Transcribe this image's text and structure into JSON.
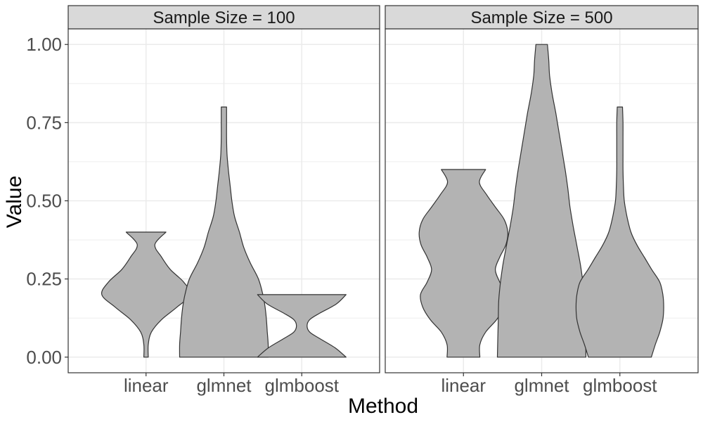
{
  "chart_data": {
    "type": "violin",
    "xlabel": "Method",
    "ylabel": "Value",
    "ylim": [
      -0.05,
      1.05
    ],
    "yticks": [
      0.0,
      0.25,
      0.5,
      0.75,
      1.0
    ],
    "ytick_labels": [
      "0.00",
      "0.25",
      "0.50",
      "0.75",
      "1.00"
    ],
    "categories": [
      "linear",
      "glmnet",
      "glmboost"
    ],
    "grid": true,
    "colors": {
      "fill": "#b3b3b3",
      "stroke": "#333333",
      "strip": "#d9d9d9",
      "grid": "#ebebeb",
      "panel_border": "#333333"
    },
    "panels": [
      {
        "strip": "Sample Size = 100",
        "violins": [
          {
            "category": "linear",
            "min": 0.0,
            "max": 0.4,
            "density": [
              [
                0.0,
                0.05
              ],
              [
                0.04,
                0.05
              ],
              [
                0.08,
                0.12
              ],
              [
                0.12,
                0.35
              ],
              [
                0.16,
                0.7
              ],
              [
                0.2,
                1.0
              ],
              [
                0.24,
                0.85
              ],
              [
                0.28,
                0.55
              ],
              [
                0.32,
                0.35
              ],
              [
                0.36,
                0.2
              ],
              [
                0.4,
                0.45
              ]
            ]
          },
          {
            "category": "glmnet",
            "min": 0.0,
            "max": 0.8,
            "density": [
              [
                0.0,
                1.0
              ],
              [
                0.04,
                1.0
              ],
              [
                0.08,
                0.98
              ],
              [
                0.12,
                0.96
              ],
              [
                0.16,
                0.93
              ],
              [
                0.2,
                0.88
              ],
              [
                0.25,
                0.78
              ],
              [
                0.3,
                0.6
              ],
              [
                0.35,
                0.45
              ],
              [
                0.4,
                0.35
              ],
              [
                0.45,
                0.24
              ],
              [
                0.5,
                0.18
              ],
              [
                0.55,
                0.14
              ],
              [
                0.6,
                0.1
              ],
              [
                0.65,
                0.07
              ],
              [
                0.7,
                0.06
              ],
              [
                0.75,
                0.06
              ],
              [
                0.8,
                0.06
              ]
            ]
          },
          {
            "category": "glmboost",
            "min": 0.0,
            "max": 0.2,
            "density": [
              [
                0.0,
                1.0
              ],
              [
                0.03,
                0.75
              ],
              [
                0.06,
                0.4
              ],
              [
                0.08,
                0.18
              ],
              [
                0.1,
                0.12
              ],
              [
                0.12,
                0.18
              ],
              [
                0.14,
                0.4
              ],
              [
                0.17,
                0.78
              ],
              [
                0.2,
                1.0
              ]
            ]
          }
        ]
      },
      {
        "strip": "Sample Size = 500",
        "violins": [
          {
            "category": "linear",
            "min": 0.0,
            "max": 0.6,
            "density": [
              [
                0.0,
                0.37
              ],
              [
                0.04,
                0.37
              ],
              [
                0.08,
                0.5
              ],
              [
                0.12,
                0.75
              ],
              [
                0.16,
                0.92
              ],
              [
                0.2,
                0.97
              ],
              [
                0.24,
                0.82
              ],
              [
                0.28,
                0.72
              ],
              [
                0.32,
                0.82
              ],
              [
                0.36,
                0.96
              ],
              [
                0.4,
                1.0
              ],
              [
                0.44,
                0.92
              ],
              [
                0.48,
                0.72
              ],
              [
                0.52,
                0.52
              ],
              [
                0.56,
                0.36
              ],
              [
                0.6,
                0.5
              ]
            ]
          },
          {
            "category": "glmnet",
            "min": 0.0,
            "max": 1.0,
            "density": [
              [
                0.0,
                1.0
              ],
              [
                0.06,
                0.99
              ],
              [
                0.12,
                0.98
              ],
              [
                0.18,
                0.97
              ],
              [
                0.24,
                0.93
              ],
              [
                0.3,
                0.87
              ],
              [
                0.36,
                0.79
              ],
              [
                0.42,
                0.71
              ],
              [
                0.48,
                0.64
              ],
              [
                0.54,
                0.59
              ],
              [
                0.6,
                0.53
              ],
              [
                0.66,
                0.46
              ],
              [
                0.72,
                0.39
              ],
              [
                0.78,
                0.32
              ],
              [
                0.84,
                0.24
              ],
              [
                0.9,
                0.18
              ],
              [
                0.95,
                0.16
              ],
              [
                1.0,
                0.13
              ]
            ]
          },
          {
            "category": "glmboost",
            "min": 0.0,
            "max": 0.8,
            "density": [
              [
                0.0,
                0.71
              ],
              [
                0.04,
                0.8
              ],
              [
                0.08,
                0.9
              ],
              [
                0.12,
                0.97
              ],
              [
                0.16,
                0.99
              ],
              [
                0.2,
                0.97
              ],
              [
                0.24,
                0.9
              ],
              [
                0.28,
                0.72
              ],
              [
                0.32,
                0.55
              ],
              [
                0.36,
                0.38
              ],
              [
                0.4,
                0.25
              ],
              [
                0.45,
                0.16
              ],
              [
                0.5,
                0.1
              ],
              [
                0.55,
                0.08
              ],
              [
                0.6,
                0.07
              ],
              [
                0.65,
                0.07
              ],
              [
                0.7,
                0.07
              ],
              [
                0.75,
                0.07
              ],
              [
                0.8,
                0.06
              ]
            ]
          }
        ]
      }
    ]
  }
}
